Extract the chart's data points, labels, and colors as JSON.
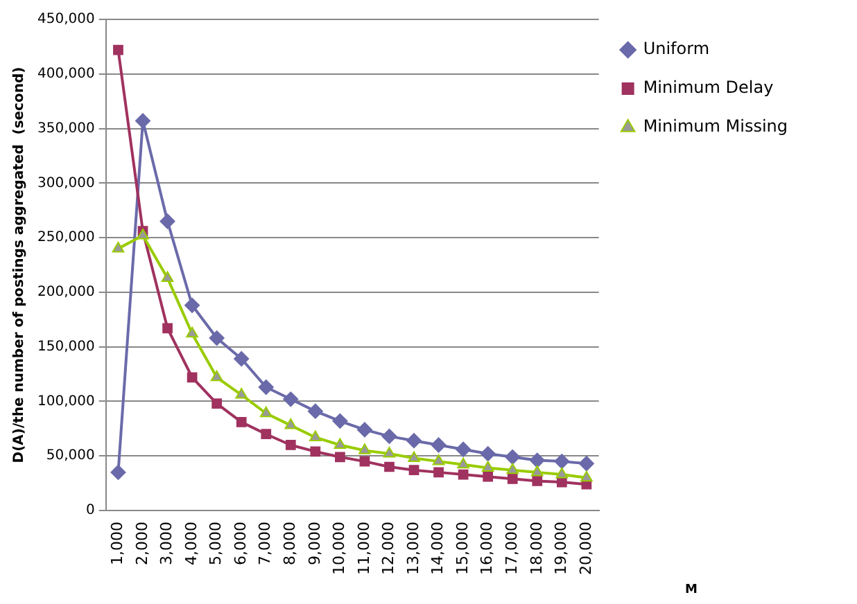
{
  "chart_data": {
    "type": "line",
    "ylabel": "D(A)/the number of postings aggregated  (second)",
    "annotations": [
      "M"
    ],
    "categories": [
      "1,000",
      "2,000",
      "3,000",
      "4,000",
      "5,000",
      "6,000",
      "7,000",
      "8,000",
      "9,000",
      "10,000",
      "11,000",
      "12,000",
      "13,000",
      "14,000",
      "15,000",
      "16,000",
      "17,000",
      "18,000",
      "19,000",
      "20,000"
    ],
    "series": [
      {
        "name": "Uniform",
        "color": "#6a6aaa",
        "marker": "diamond",
        "values": [
          35000,
          357000,
          265000,
          188000,
          158000,
          139000,
          113000,
          102000,
          91000,
          82000,
          74000,
          68000,
          64000,
          60000,
          56000,
          52000,
          49000,
          46000,
          45000,
          43000
        ]
      },
      {
        "name": "Minimum Delay",
        "color": "#a0325f",
        "marker": "square",
        "values": [
          422000,
          256000,
          167000,
          122000,
          98000,
          81000,
          70000,
          60000,
          54000,
          49000,
          45000,
          40000,
          37000,
          35000,
          33000,
          31000,
          29000,
          27000,
          26000,
          24000
        ]
      },
      {
        "name": "Minimum Missing",
        "color": "#99cc00",
        "marker": "triangle",
        "values": [
          240000,
          252000,
          213000,
          162000,
          122000,
          106000,
          89000,
          78000,
          67000,
          60000,
          55000,
          52000,
          48000,
          45000,
          42000,
          39000,
          37000,
          35000,
          33000,
          30000
        ]
      }
    ],
    "ylim": [
      0,
      450000
    ],
    "yticks": [
      0,
      {
        "value": 50000,
        "label": "50,000"
      },
      {
        "value": 100000,
        "label": "100,000"
      },
      {
        "value": 150000,
        "label": "150,000"
      },
      {
        "value": 200000,
        "label": "200,000"
      },
      {
        "value": 250000,
        "label": "250,000"
      },
      {
        "value": 300000,
        "label": "300,000"
      },
      {
        "value": 350000,
        "label": "350,000"
      },
      {
        "value": 400000,
        "label": "400,000"
      },
      {
        "value": 450000,
        "label": "450,000"
      }
    ],
    "grid": "y",
    "legend": "top right"
  }
}
